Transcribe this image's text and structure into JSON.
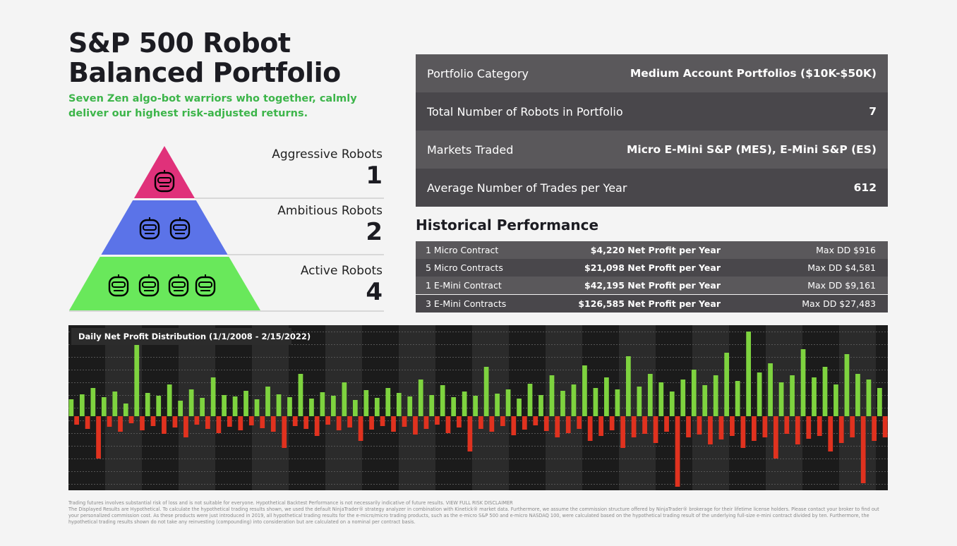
{
  "header": {
    "title": [
      "S&P 500 Robot",
      "Balanced Portfolio"
    ],
    "subtitle": [
      "Seven Zen algo-bot warriors who together, calmly",
      "deliver our highest risk-adjusted returns."
    ]
  },
  "pyramid": [
    {
      "label": "Aggressive Robots",
      "count": 1
    },
    {
      "label": "Ambitious Robots",
      "count": 2
    },
    {
      "label": "Active Robots",
      "count": 4
    }
  ],
  "summary_table": {
    "rows": [
      [
        "Portfolio Category",
        "Medium Account Portfolios ($10K-$50K)"
      ],
      [
        "Total Number of Robots in Portfolio",
        7
      ],
      [
        "Markets Traded",
        "Micro E-Mini S&P (MES), E-Mini S&P (ES)"
      ],
      [
        "Average Number of Trades per Year",
        612
      ]
    ]
  },
  "performance": {
    "title": "Historical Performance",
    "rows": [
      [
        "1 Micro Contract",
        "$4,220 Net Profit per Year",
        "Max DD $916"
      ],
      [
        "5 Micro Contracts",
        "$21,098 Net Profit per Year",
        "Max DD $4,581"
      ],
      [
        "1 E-Mini Contract",
        "$42,195 Net Profit per Year",
        "Max DD $9,161"
      ],
      [
        "3 E-Mini Contracts",
        "$126,585 Net Profit per Year",
        "Max DD $27,483"
      ]
    ]
  },
  "chart_data": {
    "type": "bar",
    "title": "Daily Net Profit Distribution (1/1/2008 - 2/15/2022)",
    "ylim": [
      -105,
      129
    ],
    "positive_color": "#7ed33f",
    "negative_color": "#e0321f",
    "values": [
      24,
      -12,
      31,
      -18,
      40,
      -60,
      27,
      -15,
      35,
      -22,
      18,
      -10,
      102,
      -20,
      33,
      -14,
      29,
      -25,
      45,
      -16,
      22,
      -30,
      38,
      -12,
      26,
      -18,
      55,
      -24,
      30,
      -15,
      28,
      -20,
      36,
      -13,
      24,
      -17,
      42,
      -22,
      31,
      -45,
      27,
      -14,
      60,
      -18,
      25,
      -28,
      34,
      -12,
      29,
      -20,
      48,
      -16,
      23,
      -35,
      37,
      -19,
      26,
      -14,
      40,
      -22,
      33,
      -15,
      28,
      -26,
      52,
      -18,
      30,
      -12,
      44,
      -24,
      27,
      -16,
      35,
      -50,
      29,
      -18,
      70,
      -22,
      32,
      -14,
      38,
      -27,
      25,
      -19,
      46,
      -13,
      30,
      -21,
      58,
      -30,
      36,
      -24,
      45,
      -18,
      72,
      -35,
      40,
      -28,
      55,
      -20,
      38,
      -45,
      85,
      -30,
      42,
      -25,
      60,
      -38,
      48,
      -22,
      35,
      -100,
      52,
      -30,
      66,
      -26,
      44,
      -40,
      58,
      -33,
      90,
      -28,
      50,
      -45,
      120,
      -35,
      62,
      -30,
      75,
      -60,
      48,
      -25,
      58,
      -40,
      95,
      -32,
      55,
      -28,
      70,
      -50,
      45,
      -38,
      88,
      -30,
      60,
      -95,
      52,
      -35,
      40,
      -30
    ]
  },
  "disclaimer": [
    "Trading futures involves substantial risk of loss and is not suitable for everyone. Hypothetical Backtest Performance is not necessarily indicative of future results. VIEW FULL RISK DISCLAIMER",
    "The Displayed Results are Hypothetical. To calculate the hypothetical trading results shown, we used the default NinjaTrader® strategy analyzer in combination with Kinetick® market data. Furthermore, we assume the commission structure offered by NinjaTrader® brokerage for their lifetime license holders. Please contact your broker to find out your personalized commission cost. As these products were just introduced in 2019, all hypothetical trading results for the e-micro/micro trading products, such as the e-micro S&P 500 and e-micro NASDAQ 100, were calculated based on the hypothetical trading result of the underlying full-size e-mini contract divided by ten. Furthermore, the hypothetical trading results shown do not take any reinvesting (compounding) into consideration but are calculated on a nominal per contract basis."
  ]
}
